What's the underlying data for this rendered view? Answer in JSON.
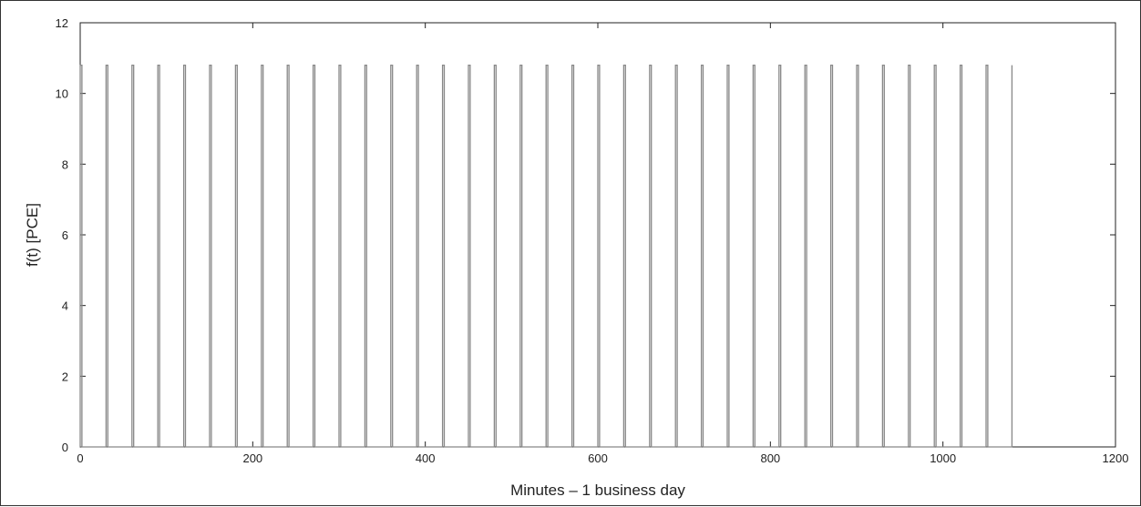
{
  "chart_data": {
    "type": "line",
    "title": "",
    "xlabel": "Minutes – 1 business day",
    "ylabel": "f(t) [PCE]",
    "xlim": [
      0,
      1200
    ],
    "ylim": [
      0,
      12
    ],
    "x_ticks": [
      "0",
      "200",
      "400",
      "600",
      "800",
      "1000",
      "1200"
    ],
    "y_ticks": [
      "0",
      "2",
      "4",
      "6",
      "8",
      "10",
      "12"
    ],
    "grid": false,
    "legend": "none",
    "line_color": "#888888",
    "series": [
      {
        "pulse_height": 10.8,
        "pulse_starts": [
          0,
          30,
          60,
          90,
          120,
          150,
          180,
          210,
          240,
          270,
          300,
          330,
          360,
          390,
          420,
          450,
          480,
          510,
          540,
          570,
          600,
          630,
          660,
          690,
          720,
          750,
          780,
          810,
          840,
          870,
          900,
          930,
          960,
          990,
          1020,
          1050
        ],
        "pulse_ends": [
          2,
          32,
          62,
          92,
          122,
          152,
          182,
          212,
          242,
          272,
          302,
          332,
          362,
          392,
          422,
          452,
          482,
          512,
          542,
          572,
          602,
          632,
          662,
          692,
          722,
          752,
          782,
          812,
          842,
          872,
          902,
          932,
          962,
          992,
          1022,
          1052
        ],
        "end_x": 1080
      }
    ]
  }
}
